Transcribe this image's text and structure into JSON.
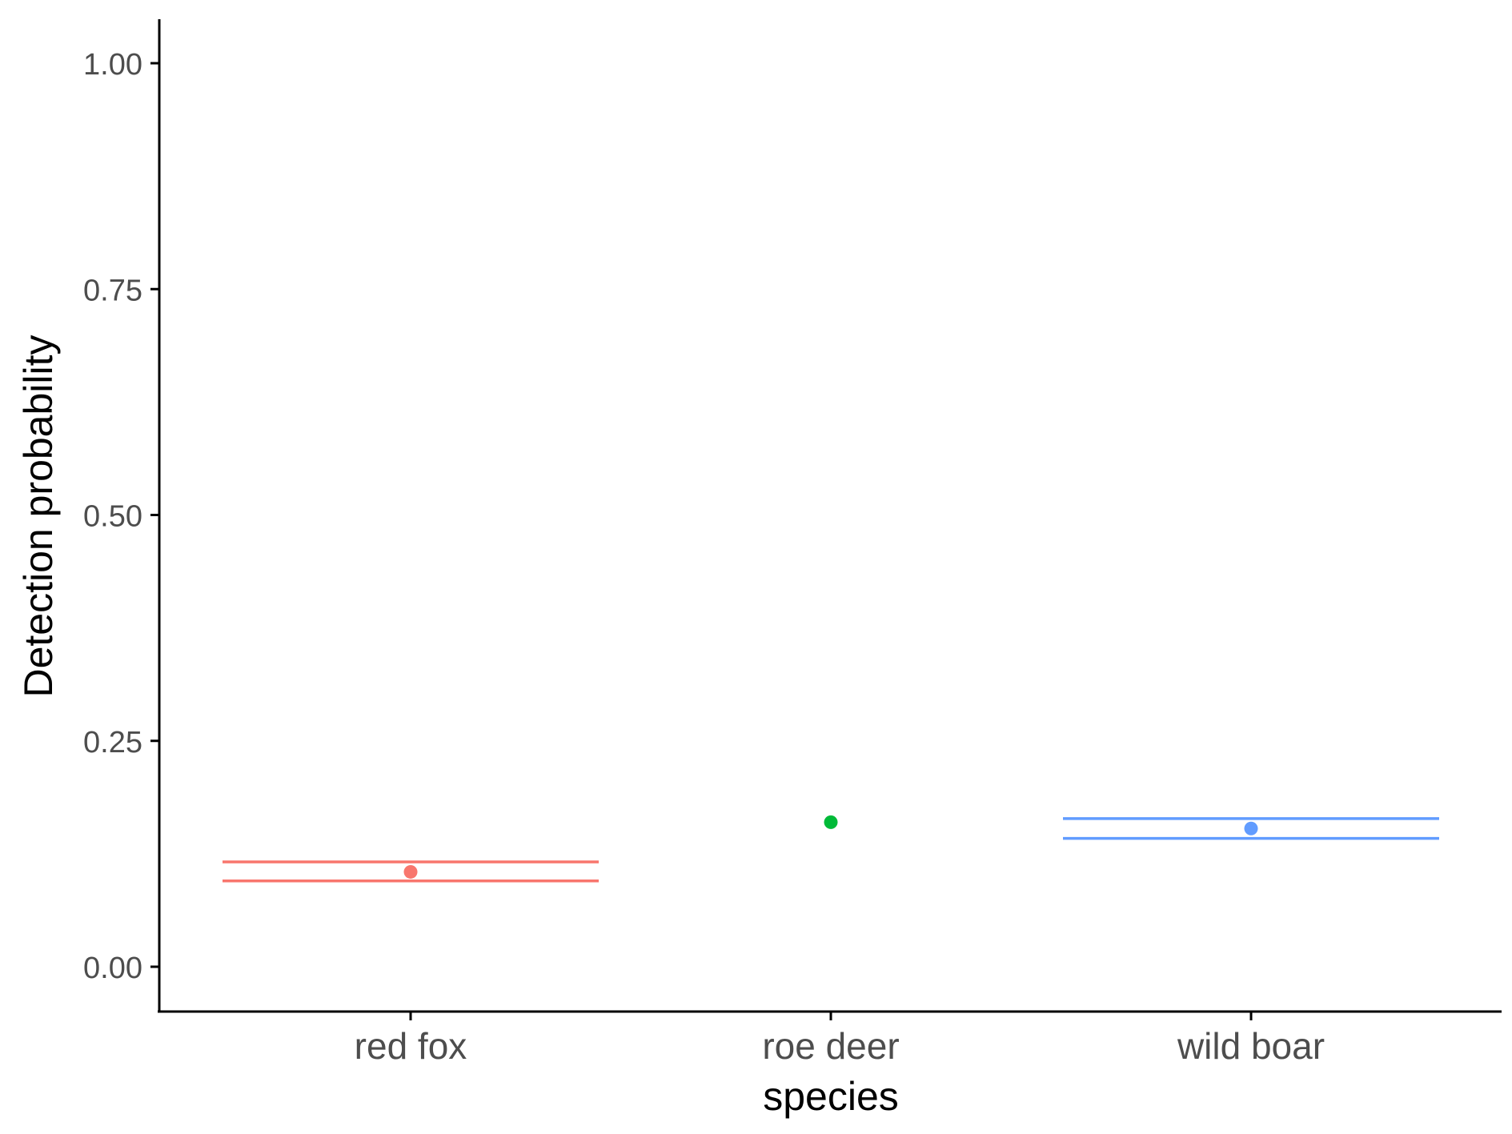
{
  "chart_data": {
    "type": "scatter",
    "title": "",
    "xlabel": "species",
    "ylabel": "Detection probability",
    "categories": [
      "red fox",
      "roe deer",
      "wild boar"
    ],
    "ylim": [
      -0.05,
      1.05
    ],
    "yticks": [
      0.0,
      0.25,
      0.5,
      0.75,
      1.0
    ],
    "ytick_labels": [
      "0.00",
      "0.25",
      "0.50",
      "0.75",
      "1.00"
    ],
    "grid": false,
    "legend": "none",
    "points": [
      {
        "category": "red fox",
        "y": 0.105,
        "lower": 0.095,
        "upper": 0.116,
        "color": "#F8766D"
      },
      {
        "category": "roe deer",
        "y": 0.16,
        "lower": null,
        "upper": null,
        "color": "#00BA38"
      },
      {
        "category": "wild boar",
        "y": 0.153,
        "lower": 0.142,
        "upper": 0.164,
        "color": "#619CFF"
      }
    ]
  }
}
